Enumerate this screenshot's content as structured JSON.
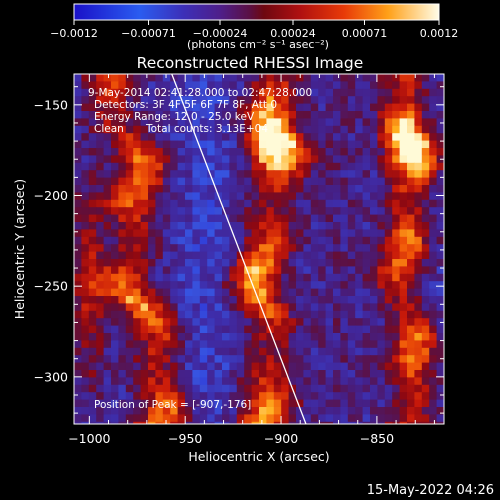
{
  "chart_data": {
    "type": "heatmap",
    "title": "Reconstructed RHESSI Image",
    "xlabel": "Heliocentric X (arcsec)",
    "ylabel": "Heliocentric Y (arcsec)",
    "xlim": [
      -1008,
      -815
    ],
    "ylim": [
      -326,
      -133
    ],
    "x_ticks": [
      -1000,
      -950,
      -900,
      -850
    ],
    "x_tick_labels": [
      "-1000",
      "-950",
      "-900",
      "-850"
    ],
    "y_ticks": [
      -150,
      -200,
      -250,
      -300
    ],
    "y_tick_labels": [
      "-150",
      "-200",
      "-250",
      "-300"
    ],
    "colorbar": {
      "min": -0.0012,
      "max": 0.0012,
      "ticks": [
        -0.0012,
        -0.00071,
        -0.00024,
        0.00024,
        0.00071,
        0.0012
      ],
      "tick_labels": [
        "-0.0012",
        "-0.00071",
        "-0.00024",
        "0.00024",
        "0.00071",
        "0.0012"
      ],
      "label": "(photons cm⁻² s⁻¹ asec⁻²)"
    },
    "annotations": {
      "time_range": "9-May-2014 02:41:28.000 to 02:47:28.000",
      "detectors": "Detectors: 3F 4F 5F 6F 7F 8F, Att 0",
      "energy": "Energy Range: 12.0 - 25.0 keV",
      "method": "Clean",
      "counts": "Total counts: 3.13E+04",
      "peak": "Position of Peak = [-907,-176]"
    },
    "limb_line": {
      "x": [
        -957,
        -887
      ],
      "y": [
        -133,
        -326
      ]
    },
    "peak_position": [
      -907,
      -176
    ],
    "structure": "three vertical bright emission bands near x ≈ -975, -905 and -835 arcsec on a purple/blue background"
  },
  "footer_date": "15-May-2022 04:26"
}
